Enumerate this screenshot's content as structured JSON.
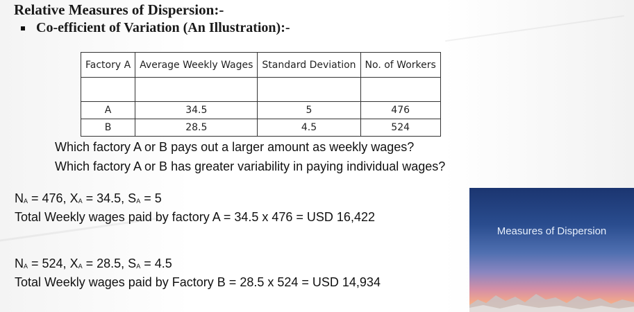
{
  "heading": "Relative Measures of Dispersion:-",
  "bullet": "Co-efficient of Variation (An Illustration):-",
  "table": {
    "headers": [
      "Factory A",
      "Average Weekly Wages",
      "Standard Deviation",
      "No. of Workers"
    ],
    "rows": [
      [
        "A",
        "34.5",
        "5",
        "476"
      ],
      [
        "B",
        "28.5",
        "4.5",
        "524"
      ]
    ]
  },
  "questions": [
    "Which factory A or B pays out a larger amount as weekly wages?",
    "Which factory A or B has greater variability in paying individual wages?"
  ],
  "factory_a": {
    "n_sym": "N",
    "n_sub": "A",
    "n_val": " = 476, ",
    "x_sym": "X",
    "x_sub": "A",
    "x_val": " = 34.5, ",
    "s_sym": "S",
    "s_sub": "A",
    "s_val": " = 5",
    "total": "Total Weekly wages paid by factory A = 34.5 x 476 = USD 16,422"
  },
  "factory_b": {
    "n_sym": "N",
    "n_sub": "A",
    "n_val": " = 524, ",
    "x_sym": "X",
    "x_sub": "A",
    "x_val": " = 28.5, ",
    "s_sym": "S",
    "s_sub": "A",
    "s_val": " = 4.5",
    "total": "Total Weekly wages paid by Factory B = 28.5 x 524 = USD 14,934"
  },
  "panel_title": "Measures of Dispersion"
}
